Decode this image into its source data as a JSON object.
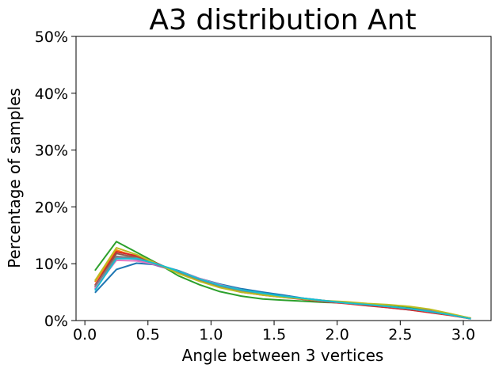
{
  "chart_data": {
    "type": "line",
    "title": "A3 distribution Ant",
    "xlabel": "Angle between 3 vertices",
    "ylabel": "Percentage of samples",
    "xlim": [
      -0.07,
      3.22
    ],
    "ylim": [
      0,
      50
    ],
    "x_ticks": [
      {
        "value": 0.0,
        "label": "0.0"
      },
      {
        "value": 0.5,
        "label": "0.5"
      },
      {
        "value": 1.0,
        "label": "1.0"
      },
      {
        "value": 1.5,
        "label": "1.5"
      },
      {
        "value": 2.0,
        "label": "2.0"
      },
      {
        "value": 2.5,
        "label": "2.5"
      },
      {
        "value": 3.0,
        "label": "3.0"
      }
    ],
    "y_ticks": [
      {
        "value": 0,
        "label": "0%"
      },
      {
        "value": 10,
        "label": "10%"
      },
      {
        "value": 20,
        "label": "20%"
      },
      {
        "value": 30,
        "label": "30%"
      },
      {
        "value": 40,
        "label": "40%"
      },
      {
        "value": 50,
        "label": "50%"
      }
    ],
    "grid": false,
    "x": [
      0.08,
      0.25,
      0.41,
      0.58,
      0.74,
      0.91,
      1.07,
      1.24,
      1.41,
      1.57,
      1.74,
      1.9,
      2.07,
      2.24,
      2.4,
      2.57,
      2.73,
      2.9,
      3.06
    ],
    "series": [
      {
        "color": "#1f77b4",
        "values": [
          4.9,
          9.0,
          10.1,
          9.8,
          8.8,
          7.4,
          6.4,
          5.6,
          5.0,
          4.5,
          3.9,
          3.5,
          3.1,
          2.7,
          2.3,
          1.9,
          1.5,
          1.0,
          0.3
        ]
      },
      {
        "color": "#ff7f0e",
        "values": [
          6.8,
          12.4,
          11.2,
          9.7,
          8.5,
          7.2,
          6.1,
          5.2,
          4.6,
          4.2,
          3.8,
          3.5,
          3.2,
          2.9,
          2.6,
          2.2,
          1.7,
          1.0,
          0.4
        ]
      },
      {
        "color": "#2ca02c",
        "values": [
          8.8,
          13.9,
          12.0,
          10.0,
          7.9,
          6.3,
          5.1,
          4.3,
          3.8,
          3.6,
          3.4,
          3.2,
          3.1,
          2.9,
          2.6,
          2.3,
          1.8,
          1.1,
          0.4
        ]
      },
      {
        "color": "#d62728",
        "values": [
          6.2,
          12.1,
          11.4,
          10.0,
          8.4,
          7.0,
          5.9,
          5.0,
          4.5,
          4.1,
          3.7,
          3.3,
          3.0,
          2.6,
          2.3,
          1.9,
          1.4,
          0.9,
          0.3
        ]
      },
      {
        "color": "#9467bd",
        "values": [
          5.5,
          11.1,
          10.8,
          9.6,
          8.6,
          7.2,
          6.2,
          5.3,
          4.7,
          4.3,
          3.9,
          3.5,
          3.1,
          2.8,
          2.5,
          2.1,
          1.7,
          1.1,
          0.4
        ]
      },
      {
        "color": "#8c564b",
        "values": [
          5.9,
          11.8,
          11.1,
          9.9,
          8.5,
          7.0,
          5.9,
          5.1,
          4.6,
          4.2,
          3.8,
          3.4,
          3.1,
          2.8,
          2.5,
          2.1,
          1.6,
          1.0,
          0.4
        ]
      },
      {
        "color": "#e377c2",
        "values": [
          5.7,
          10.6,
          10.5,
          9.8,
          8.7,
          7.4,
          6.3,
          5.4,
          4.7,
          4.2,
          3.8,
          3.4,
          3.1,
          2.8,
          2.5,
          2.1,
          1.6,
          1.0,
          0.3
        ]
      },
      {
        "color": "#7f7f7f",
        "values": [
          6.0,
          11.3,
          11.0,
          9.8,
          8.6,
          7.2,
          6.1,
          5.2,
          4.6,
          4.2,
          3.8,
          3.4,
          3.1,
          2.8,
          2.5,
          2.1,
          1.6,
          1.0,
          0.4
        ]
      },
      {
        "color": "#bcbd22",
        "values": [
          7.0,
          12.8,
          11.6,
          9.9,
          8.3,
          6.9,
          5.8,
          5.0,
          4.5,
          4.1,
          3.8,
          3.5,
          3.3,
          3.0,
          2.8,
          2.5,
          2.0,
          1.2,
          0.4
        ]
      },
      {
        "color": "#17becf",
        "values": [
          5.3,
          10.9,
          10.9,
          9.9,
          8.7,
          7.3,
          6.2,
          5.4,
          4.8,
          4.3,
          3.9,
          3.5,
          3.1,
          2.8,
          2.5,
          2.1,
          1.6,
          1.0,
          0.3
        ]
      }
    ]
  }
}
